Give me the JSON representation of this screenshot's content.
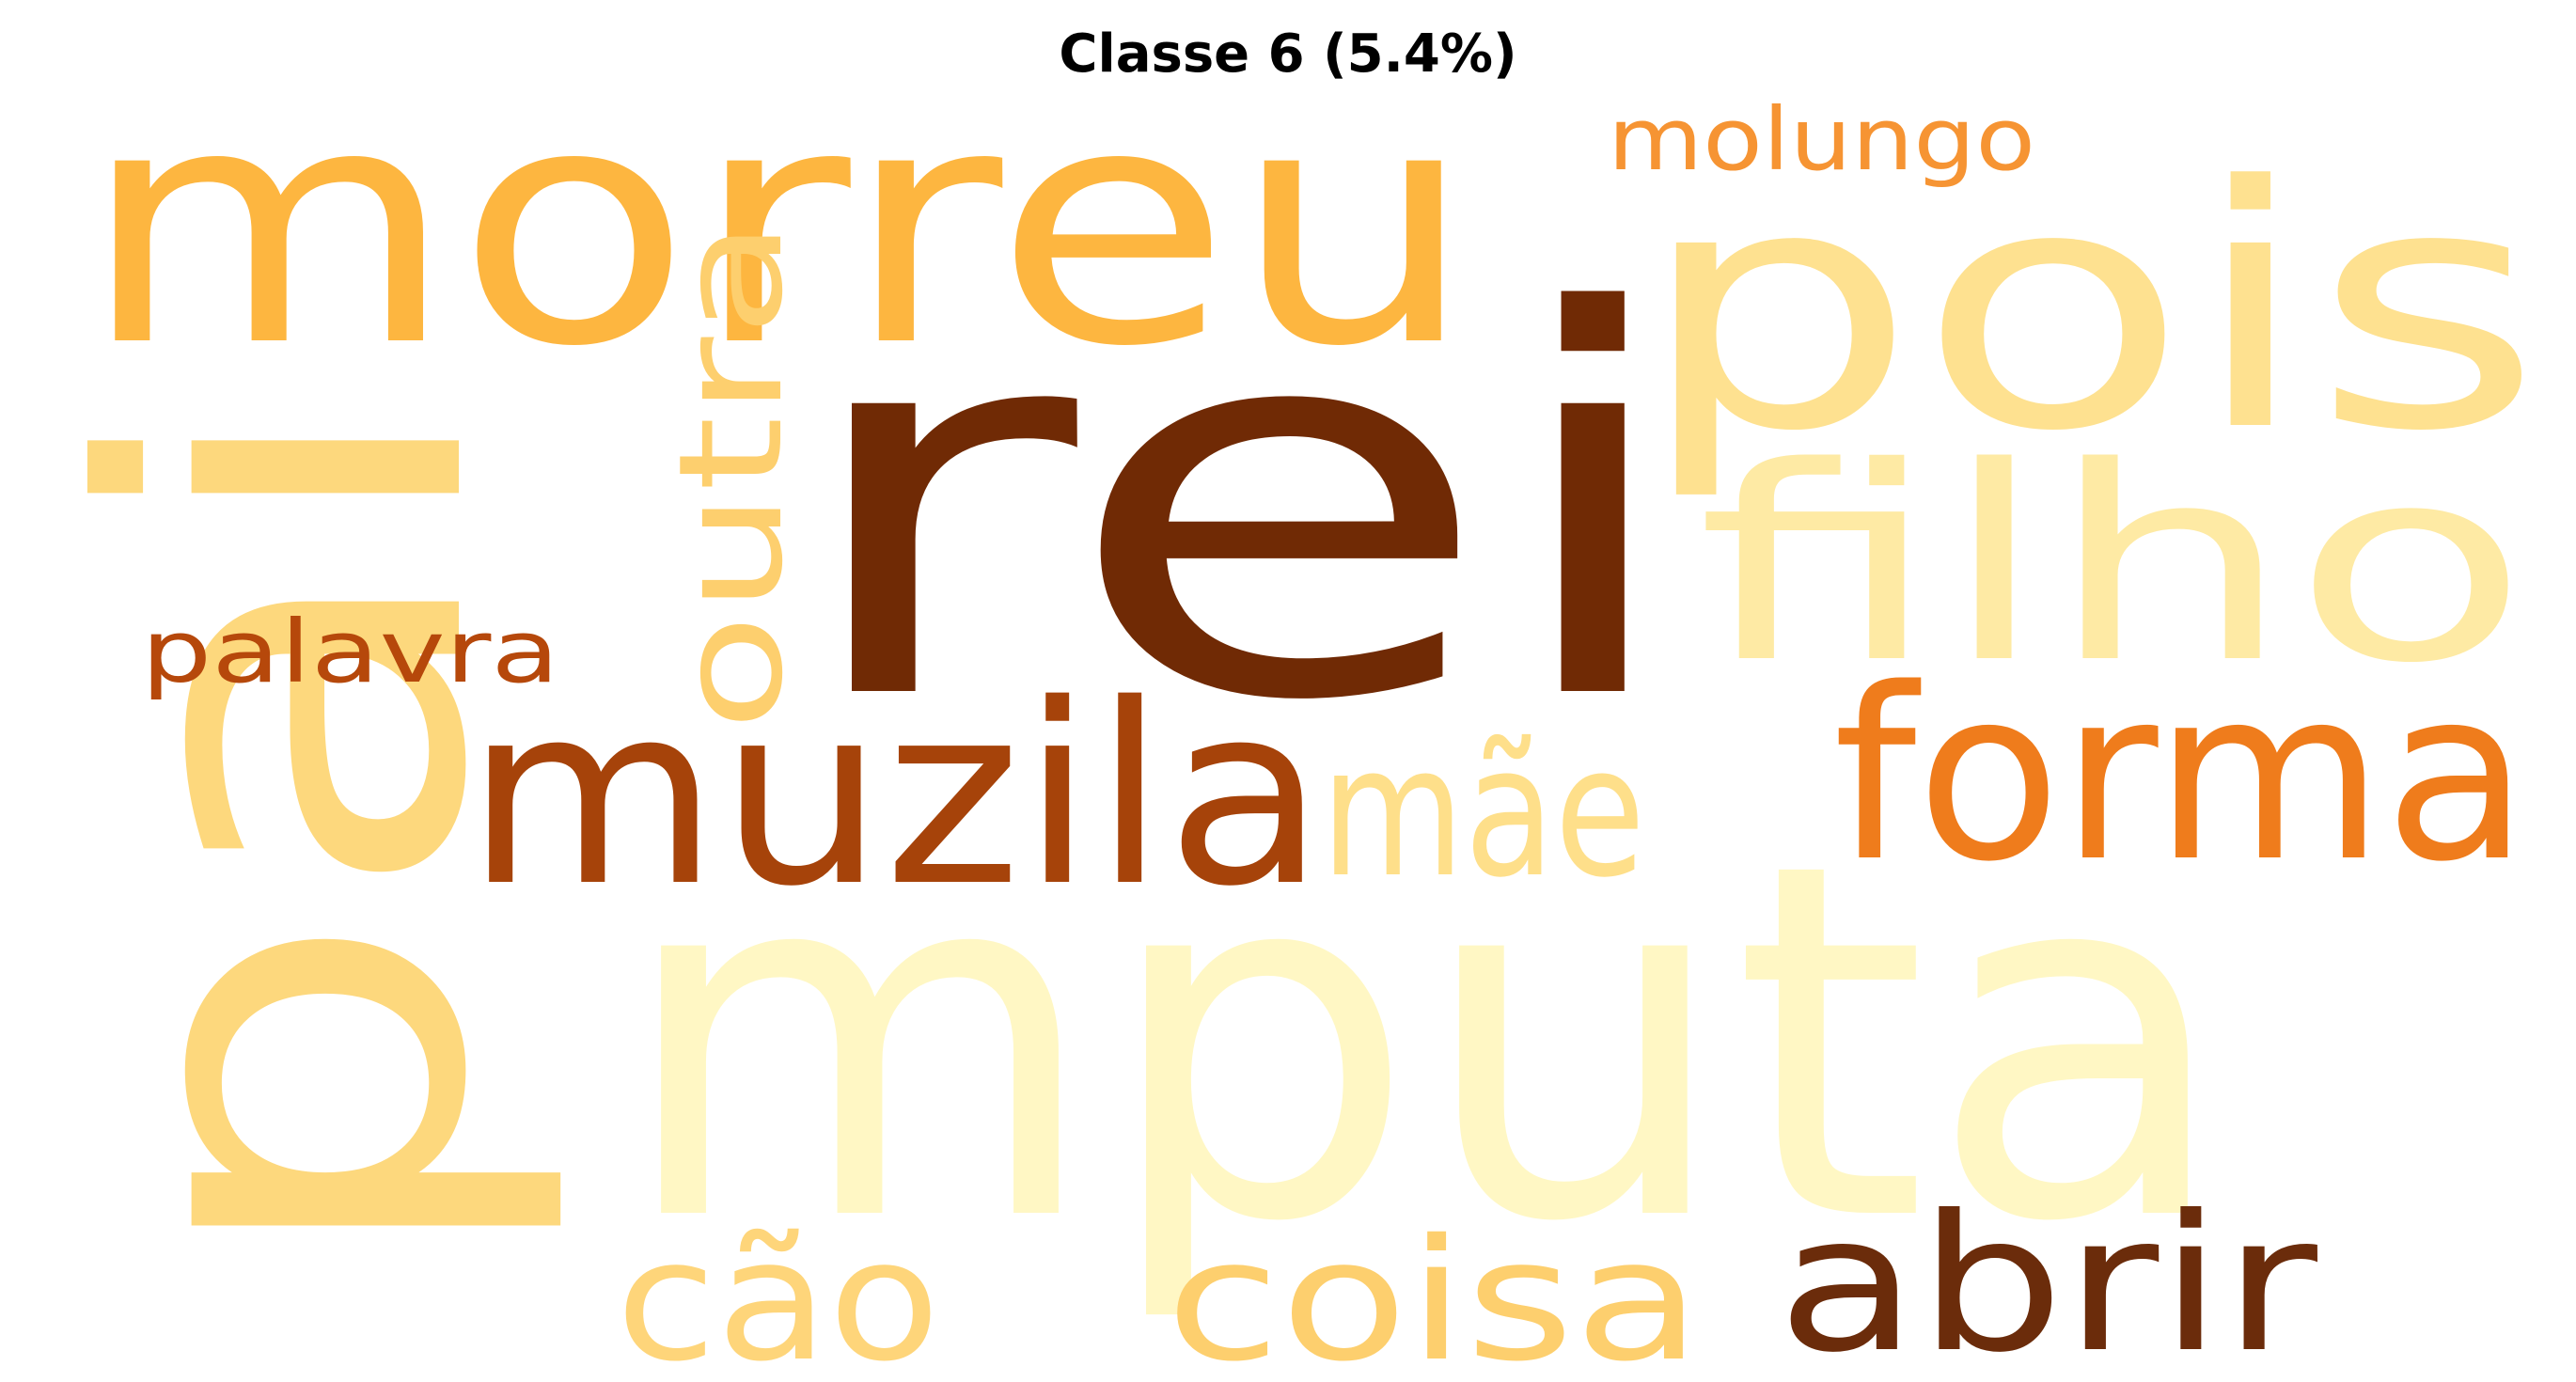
{
  "title": "Classe 6 (5.4%)",
  "words": [
    {
      "text": "mputa",
      "color": "#fff7c4"
    },
    {
      "text": "rei",
      "color": "#702a05"
    },
    {
      "text": "pai",
      "color": "#fdd87d"
    },
    {
      "text": "morreu",
      "color": "#fdb640"
    },
    {
      "text": "pois",
      "color": "#fee190"
    },
    {
      "text": "filho",
      "color": "#feeaa4"
    },
    {
      "text": "muzila",
      "color": "#a6430a"
    },
    {
      "text": "forma",
      "color": "#ef7c1c"
    },
    {
      "text": "outra",
      "color": "#fdcf6e"
    },
    {
      "text": "mãe",
      "color": "#fedf8a"
    },
    {
      "text": "coisa",
      "color": "#fdcf6e"
    },
    {
      "text": "abrir",
      "color": "#6b2c0b"
    },
    {
      "text": "cão",
      "color": "#fed57a"
    },
    {
      "text": "molungo",
      "color": "#f69433"
    },
    {
      "text": "palavra",
      "color": "#b6480b"
    }
  ]
}
